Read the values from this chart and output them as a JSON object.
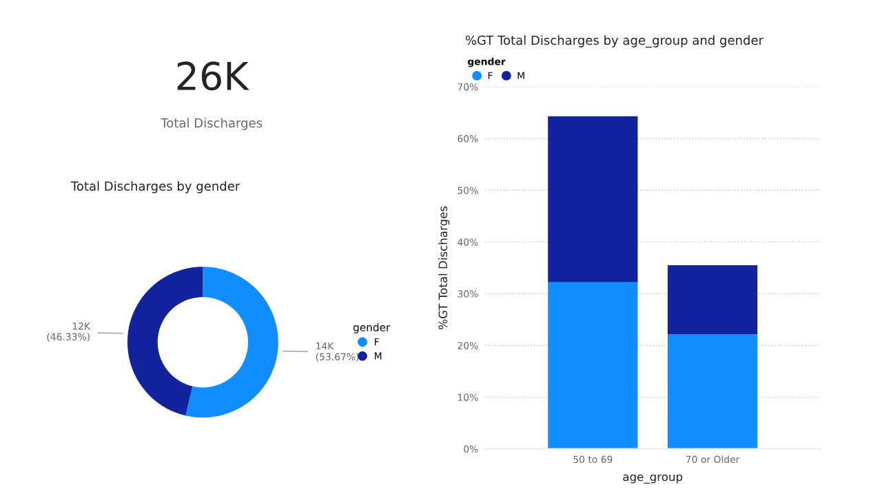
{
  "chart_data": [
    {
      "type": "other",
      "title": "Total Discharges",
      "annotations": [
        "26K"
      ]
    },
    {
      "type": "donut",
      "title": "Total Discharges by gender",
      "categories": [
        "F",
        "M"
      ],
      "values": [
        53.67,
        46.33
      ],
      "colors": [
        "#118dff",
        "#12239e"
      ],
      "value_labels": [
        "14K\n(53.67%)",
        "12K\n(46.33%)"
      ],
      "legend": "right",
      "legend_title": "gender"
    },
    {
      "type": "bar",
      "title": "%GT Total Discharges by age_group and gender",
      "categories": [
        "50 to 69",
        "70 or Older"
      ],
      "stacked": true,
      "series": [
        {
          "name": "F",
          "color": "#118dff",
          "values": [
            32.2,
            22.2
          ]
        },
        {
          "name": "M",
          "color": "#12239e",
          "values": [
            32.1,
            13.3
          ]
        }
      ],
      "ylim": [
        0,
        70
      ],
      "yticks": [
        {
          "value": 0,
          "label": "0%"
        },
        {
          "value": 10,
          "label": "10%"
        },
        {
          "value": 20,
          "label": "20%"
        },
        {
          "value": 30,
          "label": "30%"
        },
        {
          "value": 40,
          "label": "40%"
        },
        {
          "value": 50,
          "label": "50%"
        },
        {
          "value": 60,
          "label": "60%"
        },
        {
          "value": 70,
          "label": "70%"
        }
      ],
      "xlabel": "age_group",
      "ylabel": "%GT Total Discharges",
      "legend": "top left",
      "legend_title": "gender",
      "grid": "y"
    }
  ]
}
